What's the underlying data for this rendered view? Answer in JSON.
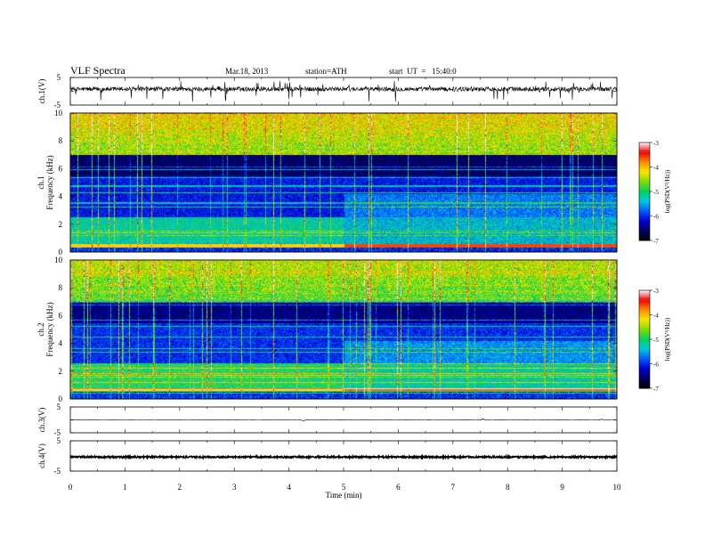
{
  "header": {
    "title": "VLF Spectra",
    "date": "Mar.18, 2013",
    "station": "station=ATH",
    "start": "start  UT  =   15:40:0"
  },
  "chart_data": [
    {
      "type": "line",
      "panel": "ch1-waveform",
      "ylabel": "ch.1(V)",
      "ylim": [
        -5,
        5
      ],
      "y_ticks": [
        "5",
        "-5"
      ],
      "xlim": [
        0,
        10
      ],
      "series": [
        {
          "values": "noisy waveform centred near 1.5 V with frequent spikes (approx. -4.5 to 4.5 V)"
        }
      ]
    },
    {
      "type": "heatmap",
      "panel": "ch1-spectrogram",
      "ylabel": "Frequency  (kHz)",
      "channel_label": "ch.1",
      "xlim": [
        0,
        10
      ],
      "ylim": [
        0,
        10
      ],
      "y_ticks": [
        "0",
        "2",
        "4",
        "6",
        "8",
        "10"
      ],
      "data_extent_min": 9.8,
      "color_scale": {
        "label": "log(PSD(V²/Hz))",
        "min": -7,
        "max": -3,
        "ticks": [
          "-3",
          "-4",
          "-5",
          "-6",
          "-7"
        ]
      },
      "features": {
        "high_band_kHz": [
          7,
          10
        ],
        "high_band_level": -4.4,
        "mid_band_kHz": [
          2.5,
          7
        ],
        "mid_band_level": -6.3,
        "low_band_kHz": [
          0.7,
          2.5
        ],
        "low_band_level": -5.4,
        "red_band_kHz": 0.5,
        "red_band_level": -3.6,
        "transition_min": 4.9
      }
    },
    {
      "type": "heatmap",
      "panel": "ch2-spectrogram",
      "ylabel": "Frequency  (kHz)",
      "channel_label": "ch.2",
      "xlim": [
        0,
        10
      ],
      "ylim": [
        0,
        10
      ],
      "y_ticks": [
        "0",
        "2",
        "4",
        "6",
        "8",
        "10"
      ],
      "data_extent_min": 9.8,
      "color_scale": {
        "label": "log(PSD(V²/Hz))",
        "min": -7,
        "max": -3,
        "ticks": [
          "-3",
          "-4",
          "-5",
          "-6",
          "-7"
        ]
      },
      "features": {
        "high_band_kHz": [
          7,
          10
        ],
        "high_band_level": -4.6,
        "mid_band_kHz": [
          2.5,
          7
        ],
        "mid_band_level": -6.2,
        "low_band_kHz": [
          0.7,
          2.5
        ],
        "low_band_level": -5.2,
        "red_band_kHz": 0.7,
        "red_band_level": -3.7,
        "transition_min": 4.9
      }
    },
    {
      "type": "line",
      "panel": "ch3-waveform",
      "ylabel": "ch.3(V)",
      "ylim": [
        -5,
        5
      ],
      "y_ticks": [
        "5",
        "-5"
      ],
      "xlim": [
        0,
        10
      ],
      "series": [
        {
          "values": "nearly flat trace near 0 V"
        }
      ]
    },
    {
      "type": "line",
      "panel": "ch4-waveform",
      "ylabel": "ch.4(V)",
      "ylim": [
        -5,
        5
      ],
      "y_ticks": [
        "5",
        "-5"
      ],
      "xlim": [
        0,
        10
      ],
      "series": [
        {
          "values": "thick noise band near 0 V"
        }
      ],
      "xlabel": "Time  (min)",
      "x_ticks": [
        "0",
        "1",
        "2",
        "3",
        "4",
        "5",
        "6",
        "7",
        "8",
        "9",
        "10"
      ]
    }
  ]
}
